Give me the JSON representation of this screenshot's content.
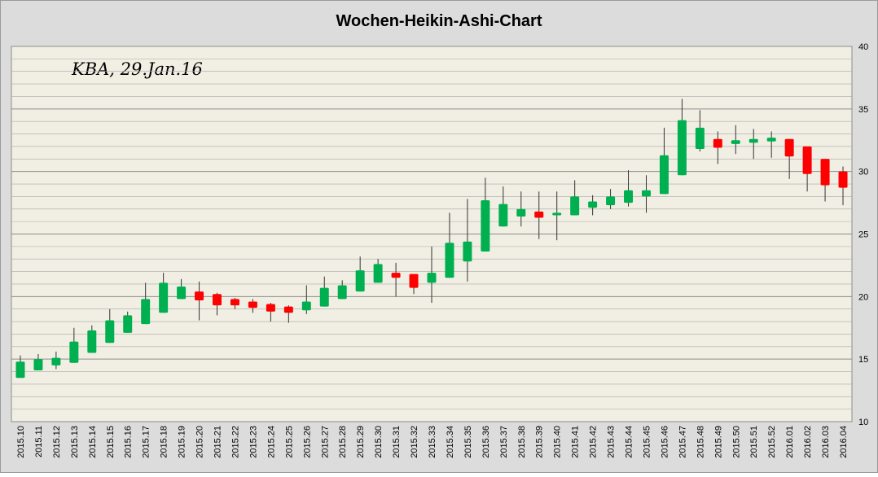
{
  "chart_data": {
    "type": "candlestick",
    "title": "Wochen-Heikin-Ashi-Chart",
    "annotation": "KBA, 29.Jan.16",
    "categories": [
      "2015.10",
      "2015.11",
      "2015.12",
      "2015.13",
      "2015.14",
      "2015.15",
      "2015.16",
      "2015.17",
      "2015.18",
      "2015.19",
      "2015.20",
      "2015.21",
      "2015.22",
      "2015.23",
      "2015.24",
      "2015.25",
      "2015.26",
      "2015.27",
      "2015.28",
      "2015.29",
      "2015.30",
      "2015.31",
      "2015.32",
      "2015.33",
      "2015.34",
      "2015.35",
      "2015.36",
      "2015.37",
      "2015.38",
      "2015.39",
      "2015.40",
      "2015.41",
      "2015.42",
      "2015.43",
      "2015.44",
      "2015.45",
      "2015.46",
      "2015.47",
      "2015.48",
      "2015.49",
      "2015.50",
      "2015.51",
      "2015.52",
      "2016.01",
      "2016.02",
      "2016.03",
      "2016.04"
    ],
    "open": [
      13.5,
      14.1,
      14.5,
      14.7,
      15.5,
      16.3,
      17.1,
      17.8,
      18.7,
      19.8,
      20.4,
      20.2,
      19.8,
      19.6,
      19.4,
      19.2,
      18.9,
      19.2,
      19.8,
      20.4,
      21.1,
      21.9,
      21.8,
      21.1,
      21.5,
      22.8,
      23.6,
      25.6,
      26.4,
      26.8,
      26.5,
      26.5,
      27.1,
      27.3,
      27.5,
      28.0,
      28.2,
      29.7,
      31.8,
      32.6,
      32.2,
      32.3,
      32.4,
      32.6,
      32.0,
      31.0,
      30.0
    ],
    "high": [
      15.3,
      15.4,
      15.6,
      17.5,
      17.7,
      19.0,
      18.8,
      21.1,
      21.9,
      21.4,
      21.2,
      20.3,
      19.9,
      19.8,
      19.5,
      19.3,
      20.9,
      21.6,
      21.3,
      23.2,
      23.0,
      22.7,
      21.8,
      24.0,
      26.7,
      27.8,
      29.5,
      28.8,
      28.4,
      28.4,
      28.4,
      29.3,
      28.1,
      28.6,
      30.1,
      29.7,
      33.5,
      35.8,
      34.9,
      33.2,
      33.7,
      33.4,
      33.2,
      32.6,
      32.0,
      31.0,
      30.4
    ],
    "low": [
      13.5,
      14.1,
      14.2,
      14.7,
      15.5,
      16.3,
      17.1,
      17.8,
      18.7,
      19.8,
      18.1,
      18.5,
      19.0,
      18.7,
      18.0,
      17.9,
      18.6,
      19.2,
      19.8,
      20.4,
      21.1,
      20.0,
      20.2,
      19.5,
      21.5,
      21.2,
      23.6,
      25.6,
      25.6,
      24.6,
      24.5,
      26.5,
      26.5,
      27.0,
      27.2,
      26.7,
      28.2,
      29.7,
      31.6,
      30.6,
      31.4,
      31.0,
      31.1,
      29.4,
      28.4,
      27.6,
      27.3
    ],
    "close": [
      14.8,
      15.0,
      15.1,
      16.4,
      17.3,
      18.1,
      18.5,
      19.8,
      21.1,
      20.8,
      19.7,
      19.3,
      19.3,
      19.1,
      18.8,
      18.7,
      19.6,
      20.7,
      20.9,
      22.1,
      22.6,
      21.5,
      20.7,
      21.9,
      24.3,
      24.4,
      27.7,
      27.4,
      27.0,
      26.3,
      26.7,
      28.0,
      27.6,
      28.0,
      28.5,
      28.5,
      31.3,
      34.1,
      33.5,
      31.9,
      32.5,
      32.6,
      32.7,
      31.2,
      29.8,
      28.9,
      28.7
    ],
    "up_color": "#00b050",
    "down_color": "#ff0000",
    "ylim": [
      10,
      40
    ],
    "yticks": [
      10,
      15,
      20,
      25,
      30,
      35,
      40
    ],
    "minor_yticks": [
      11,
      12,
      13,
      14,
      16,
      17,
      18,
      19,
      21,
      22,
      23,
      24,
      26,
      27,
      28,
      29,
      31,
      32,
      33,
      34,
      36,
      37,
      38,
      39
    ],
    "grid": true
  }
}
